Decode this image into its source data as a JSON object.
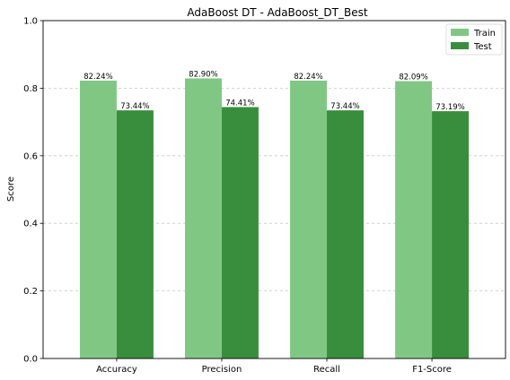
{
  "chart_data": {
    "type": "bar",
    "title": "AdaBoost DT - AdaBoost_DT_Best",
    "xlabel": "",
    "ylabel": "Score",
    "ylim": [
      0,
      1
    ],
    "yticks": [
      "0.0",
      "0.2",
      "0.4",
      "0.6",
      "0.8",
      "1.0"
    ],
    "grid": "horizontal-dashed",
    "legend_position": "top-right",
    "categories": [
      "Accuracy",
      "Precision",
      "Recall",
      "F1-Score"
    ],
    "series": [
      {
        "name": "Train",
        "color": "#81c784",
        "values": [
          0.8224,
          0.829,
          0.8224,
          0.8209
        ],
        "labels": [
          "82.24%",
          "82.90%",
          "82.24%",
          "82.09%"
        ]
      },
      {
        "name": "Test",
        "color": "#388e3c",
        "values": [
          0.7344,
          0.7441,
          0.7344,
          0.7319
        ],
        "labels": [
          "73.44%",
          "74.41%",
          "73.44%",
          "73.19%"
        ]
      }
    ]
  }
}
